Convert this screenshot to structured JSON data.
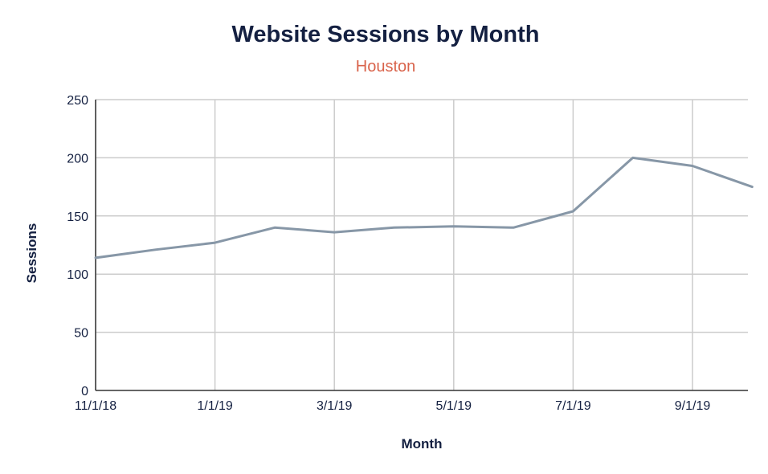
{
  "chart_data": {
    "type": "line",
    "title": "Website Sessions by Month",
    "subtitle": "Houston",
    "xlabel": "Month",
    "ylabel": "Sessions",
    "x": [
      "11/1/18",
      "12/1/18",
      "1/1/19",
      "2/1/19",
      "3/1/19",
      "4/1/19",
      "5/1/19",
      "6/1/19",
      "7/1/19",
      "8/1/19",
      "9/1/19",
      "10/1/19"
    ],
    "x_ticks": [
      "11/1/18",
      "1/1/19",
      "3/1/19",
      "5/1/19",
      "7/1/19",
      "9/1/19"
    ],
    "series": [
      {
        "values": [
          114,
          121,
          127,
          140,
          136,
          140,
          141,
          140,
          154,
          200,
          193,
          175
        ]
      }
    ],
    "ylim": [
      0,
      250
    ],
    "y_ticks": [
      0,
      50,
      100,
      150,
      200,
      250
    ],
    "grid": true,
    "legend": "none",
    "colors": {
      "line": "#8797a7",
      "title": "#142041",
      "subtitle": "#d9644c",
      "grid": "#cccccc"
    }
  }
}
